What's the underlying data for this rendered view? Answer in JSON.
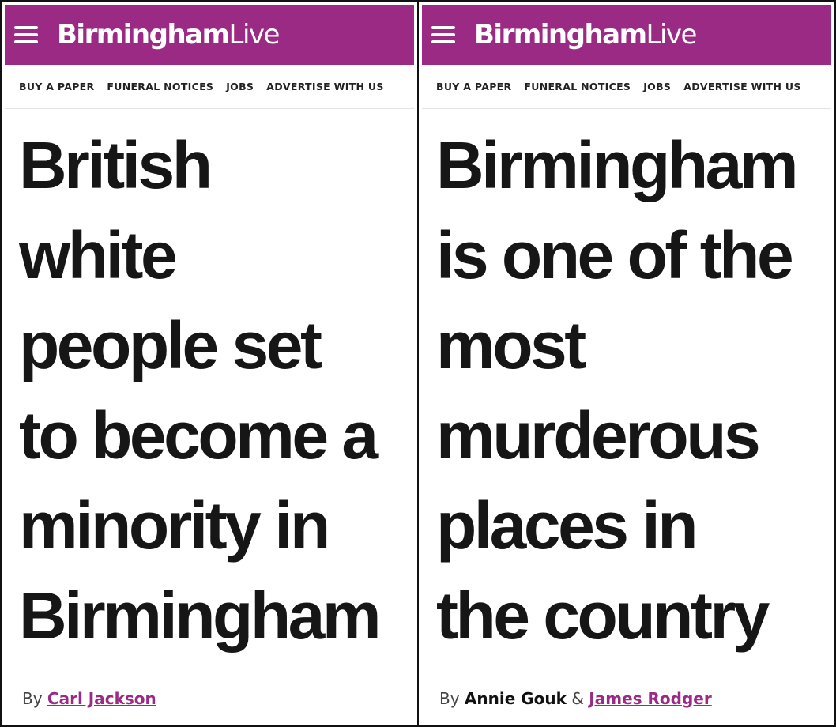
{
  "brand_color": "#9b2a85",
  "left": {
    "logo": {
      "bold": "Birmingham",
      "light": "Live"
    },
    "nav": [
      "BUY A PAPER",
      "FUNERAL NOTICES",
      "JOBS",
      "ADVERTISE WITH US"
    ],
    "headline_lines": [
      "British",
      "white",
      "people set",
      "to become a",
      "minority in",
      "Birmingham"
    ],
    "byline": {
      "prefix": "By",
      "author": "Carl Jackson"
    }
  },
  "right": {
    "logo": {
      "bold": "Birmingham",
      "light": "Live"
    },
    "nav": [
      "BUY A PAPER",
      "FUNERAL NOTICES",
      "JOBS",
      "ADVERTISE WITH US"
    ],
    "headline_lines": [
      "Birmingham",
      "is one of the",
      "most",
      "murderous",
      "places in",
      "the country"
    ],
    "byline": {
      "prefix": "By",
      "author_1": "Annie Gouk",
      "separator": "&",
      "author_2": "James Rodger"
    }
  },
  "icons": {
    "menu": "hamburger-menu-icon"
  }
}
